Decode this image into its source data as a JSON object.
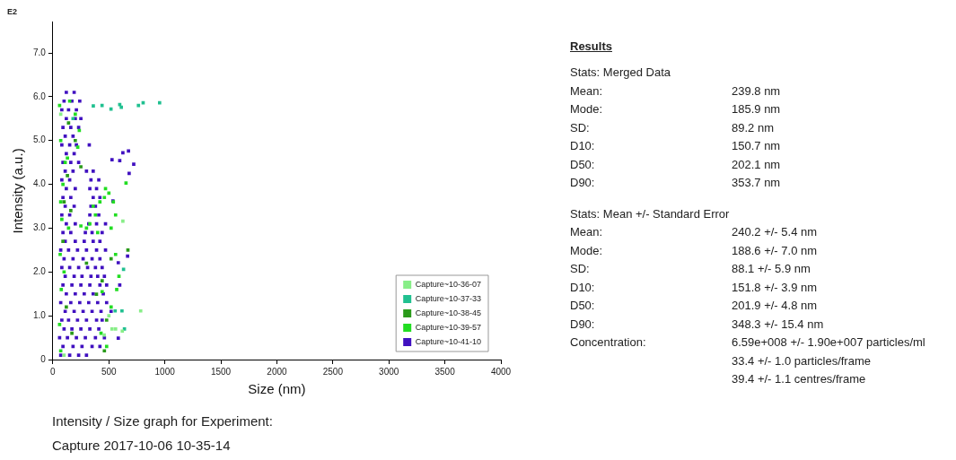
{
  "chart_data": [
    {
      "type": "scatter",
      "title": "E2",
      "xlabel": "Size (nm)",
      "ylabel": "Intensity (a.u.)",
      "xlim": [
        0,
        4000
      ],
      "xticks": [
        0,
        500,
        1000,
        1500,
        2000,
        2500,
        3000,
        3500,
        4000
      ],
      "ylim": [
        0,
        7.7
      ],
      "yticks": [
        0,
        {
          "value": 1,
          "label": "1.0"
        },
        {
          "value": 2,
          "label": "2.0"
        },
        {
          "value": 3,
          "label": "3.0"
        },
        {
          "value": 4,
          "label": "4.0"
        },
        {
          "value": 5,
          "label": "5.0"
        },
        {
          "value": 6,
          "label": "6.0"
        },
        {
          "value": 7,
          "label": "7.0"
        }
      ],
      "grid": false,
      "legend": "bottom right",
      "marker": "square",
      "annotations": [
        "Intensity / Size graph for Experiment:",
        "Capture 2017-10-06 10-35-14"
      ],
      "series": [
        {
          "name": "Capture~10-36-07",
          "color": "#88ee88",
          "x": [
            784,
            625,
            528,
            458,
            560,
            100,
            70,
            620,
            500
          ],
          "values": [
            1.11,
            3.16,
            0.7,
            0.56,
            0.7,
            0.1,
            5.6,
            0.65,
            1.0
          ]
        },
        {
          "name": "Capture~10-37-33",
          "color": "#20c090",
          "x": [
            361,
            439,
            519,
            597,
            611,
            764,
            806,
            953,
            556,
            617,
            631,
            639,
            180
          ],
          "values": [
            5.79,
            5.8,
            5.72,
            5.82,
            5.76,
            5.8,
            5.86,
            5.86,
            1.11,
            1.11,
            2.06,
            0.7,
            5.5
          ]
        },
        {
          "name": "Capture~10-38-45",
          "color": "#2a9a1a",
          "x": [
            670,
            389,
            440,
            100,
            160,
            90,
            130,
            200,
            120,
            170,
            460,
            480,
            300,
            250,
            520,
            140
          ],
          "values": [
            2.5,
            1.49,
            1.8,
            3.6,
            3.4,
            2.7,
            4.2,
            5.0,
            1.2,
            0.6,
            0.2,
            0.9,
            2.2,
            4.4,
            2.3,
            5.4
          ]
        },
        {
          "name": "Capture~10-39-57",
          "color": "#22dd22",
          "x": [
            70,
            60,
            75,
            65,
            80,
            70,
            110,
            130,
            70,
            60,
            150,
            236,
            222,
            200,
            90,
            140,
            100,
            300,
            330,
            360,
            380,
            420,
            460,
            500,
            560,
            520,
            470,
            653,
            560,
            590,
            570,
            440,
            520,
            480,
            430,
            250,
            400,
            540
          ],
          "values": [
            0.2,
            0.8,
            1.6,
            2.4,
            3.2,
            3.6,
            4.5,
            4.6,
            5.0,
            5.8,
            5.9,
            5.23,
            4.85,
            5.6,
            4.0,
            3.0,
            2.0,
            3.0,
            3.1,
            3.5,
            3.3,
            3.6,
            3.7,
            3.8,
            3.3,
            3.0,
            3.9,
            4.03,
            2.4,
            1.9,
            1.6,
            1.55,
            1.2,
            0.3,
            0.6,
            3.05,
            2.9,
            3.6
          ]
        },
        {
          "name": "Capture~10-41-10",
          "color": "#4010c0",
          "x": [
            70,
            150,
            230,
            300,
            90,
            180,
            260,
            350,
            420,
            60,
            130,
            210,
            290,
            380,
            460,
            100,
            170,
            250,
            330,
            410,
            80,
            140,
            220,
            300,
            390,
            440,
            110,
            190,
            270,
            350,
            430,
            520,
            70,
            160,
            240,
            320,
            400,
            480,
            120,
            200,
            280,
            360,
            450,
            90,
            170,
            250,
            330,
            420,
            480,
            110,
            190,
            260,
            340,
            400,
            460,
            80,
            150,
            230,
            310,
            380,
            440,
            100,
            180,
            270,
            350,
            420,
            70,
            140,
            220,
            300,
            390,
            470,
            110,
            200,
            280,
            360,
            420,
            90,
            160,
            290,
            350,
            440,
            120,
            200,
            320,
            390,
            470,
            80,
            150,
            330,
            410,
            110,
            190,
            340,
            380,
            90,
            160,
            360,
            420,
            120,
            200,
            330,
            390,
            80,
            150,
            340,
            410,
            110,
            180,
            300,
            360,
            90,
            160,
            230,
            120,
            190,
            80,
            150,
            210,
            325,
            110,
            180,
            90,
            160,
            230,
            120,
            200,
            250,
            80,
            140,
            210,
            100,
            170,
            240,
            120,
            190,
            528,
            597,
            625,
            675,
            722,
            681,
            584,
            667,
            597,
            584,
            536
          ],
          "values": [
            0.1,
            0.1,
            0.1,
            0.1,
            0.3,
            0.3,
            0.3,
            0.3,
            0.3,
            0.5,
            0.5,
            0.5,
            0.5,
            0.5,
            0.5,
            0.7,
            0.7,
            0.7,
            0.7,
            0.7,
            0.9,
            0.9,
            0.9,
            0.9,
            0.9,
            0.9,
            1.1,
            1.1,
            1.1,
            1.1,
            1.1,
            1.1,
            1.3,
            1.3,
            1.3,
            1.3,
            1.3,
            1.3,
            1.5,
            1.5,
            1.5,
            1.5,
            1.5,
            1.7,
            1.7,
            1.7,
            1.7,
            1.7,
            1.7,
            1.9,
            1.9,
            1.9,
            1.9,
            1.9,
            1.9,
            2.1,
            2.1,
            2.1,
            2.1,
            2.1,
            2.1,
            2.3,
            2.3,
            2.3,
            2.3,
            2.3,
            2.5,
            2.5,
            2.5,
            2.5,
            2.5,
            2.5,
            2.7,
            2.7,
            2.7,
            2.7,
            2.7,
            2.9,
            2.9,
            2.9,
            2.9,
            2.9,
            3.1,
            3.1,
            3.1,
            3.1,
            3.1,
            3.3,
            3.3,
            3.3,
            3.3,
            3.5,
            3.5,
            3.5,
            3.5,
            3.7,
            3.7,
            3.7,
            3.7,
            3.9,
            3.9,
            3.9,
            3.9,
            4.1,
            4.1,
            4.1,
            4.1,
            4.3,
            4.3,
            4.3,
            4.3,
            4.5,
            4.5,
            4.5,
            4.7,
            4.7,
            4.9,
            4.9,
            4.9,
            4.9,
            5.1,
            5.1,
            5.3,
            5.3,
            5.3,
            5.5,
            5.5,
            5.5,
            5.7,
            5.7,
            5.7,
            5.9,
            5.9,
            5.9,
            6.1,
            6.1,
            4.56,
            4.54,
            4.72,
            4.76,
            4.46,
            4.25,
            0.49,
            2.36,
            1.7,
            2.21,
            3.62
          ]
        }
      ]
    },
    {
      "type": "other",
      "title": "Results",
      "subtitle": "Stats: Merged Data",
      "annotations": [
        "Mean:",
        "239.8 nm",
        "Mode:",
        "185.9 nm",
        "SD:",
        "89.2 nm",
        "D10:",
        "150.7 nm",
        "D50:",
        "202.1 nm",
        "D90:",
        "353.7 nm"
      ]
    },
    {
      "type": "other",
      "title": "Stats: Mean +/- Standard Error",
      "annotations": [
        "Mean:",
        "240.2 +/- 5.4 nm",
        "Mode:",
        "188.6 +/- 7.0 nm",
        "SD:",
        "88.1 +/- 5.9 nm",
        "D10:",
        "151.8 +/- 3.9 nm",
        "D50:",
        "201.9 +/- 4.8 nm",
        "D90:",
        "348.3 +/- 15.4 nm",
        "Concentration:",
        "6.59e+008 +/- 1.90e+007 particles/ml\n33.4 +/- 1.0 particles/frame\n39.4 +/- 1.1 centres/frame"
      ]
    }
  ]
}
